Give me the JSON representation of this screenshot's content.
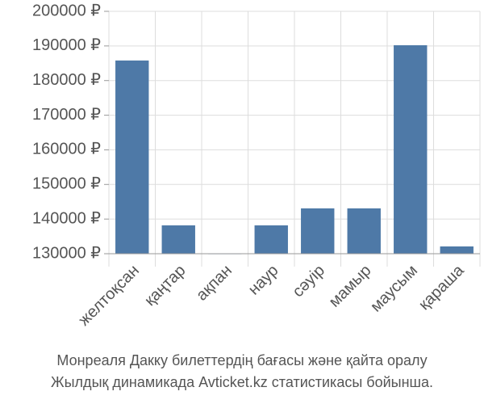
{
  "chart_data": {
    "type": "bar",
    "title": "Монреаля Дакку билеттердің бағасы және қайта оралу",
    "subtitle": "Жылдық динамикада Avticket.kz статистикасы бойынша.",
    "categories": [
      "желтоқсан",
      "қаңтар",
      "ақпан",
      "наур",
      "сәуір",
      "мамыр",
      "маусым",
      "қараша"
    ],
    "values": [
      185800,
      138200,
      130100,
      138200,
      143100,
      143100,
      190200,
      132100
    ],
    "color": "#4e79a7",
    "ylim": [
      130000,
      200000
    ],
    "yticks": [
      {
        "value": 130000,
        "label": "130000 ₽"
      },
      {
        "value": 140000,
        "label": "140000 ₽"
      },
      {
        "value": 150000,
        "label": "150000 ₽"
      },
      {
        "value": 160000,
        "label": "160000 ₽"
      },
      {
        "value": 170000,
        "label": "170000 ₽"
      },
      {
        "value": 180000,
        "label": "180000 ₽"
      },
      {
        "value": 190000,
        "label": "190000 ₽"
      },
      {
        "value": 200000,
        "label": "200000 ₽"
      }
    ],
    "grid": true
  }
}
